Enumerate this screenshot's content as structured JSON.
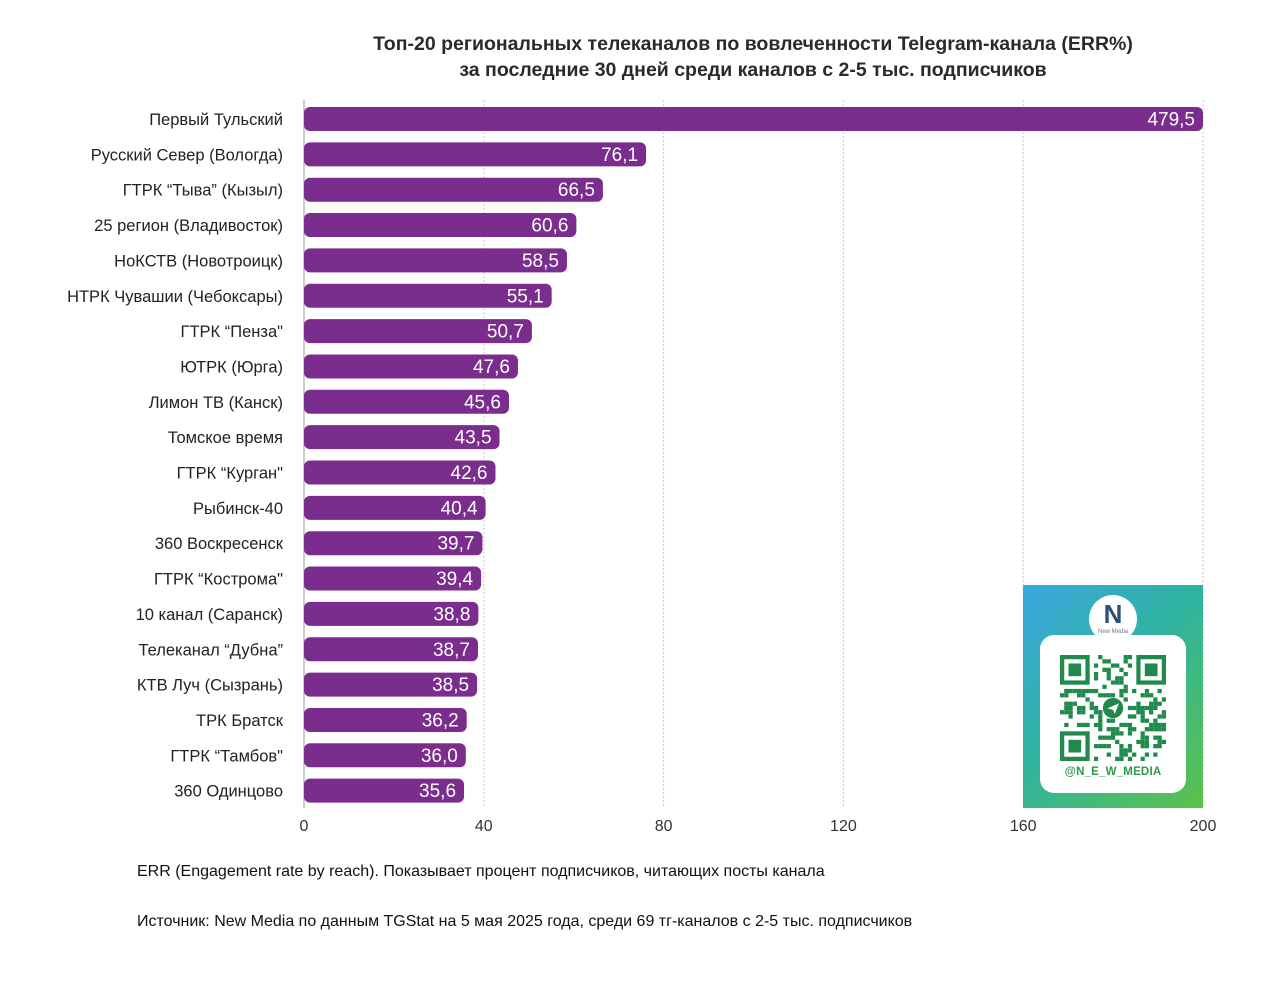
{
  "chart_data": {
    "type": "bar",
    "orientation": "horizontal",
    "title": "Топ-20 региональных телеканалов по вовлеченности Telegram-канала (ERR%)",
    "subtitle": "за последние 30 дней среди каналов с 2-5 тыс. подписчиков",
    "categories": [
      "Первый Тульский",
      "Русский Север (Вологда)",
      "ГТРК “Тыва” (Кызыл)",
      "25 регион (Владивосток)",
      "НоКСТВ (Новотроицк)",
      "НТРК Чувашии (Чебоксары)",
      "ГТРК “Пенза\"",
      "ЮТРК (Юрга)",
      "Лимон ТВ (Канск)",
      "Томское время",
      "ГТРК “Курган\"",
      "Рыбинск-40",
      "360 Воскресенск",
      "ГТРК “Кострома\"",
      "10 канал (Саранск)",
      "Телеканал “Дубна”",
      "КТВ Луч (Сызрань)",
      "ТРК Братск",
      "ГТРК “Тамбов\"",
      "360 Одинцово"
    ],
    "values": [
      479.5,
      76.1,
      66.5,
      60.6,
      58.5,
      55.1,
      50.7,
      47.6,
      45.6,
      43.5,
      42.6,
      40.4,
      39.7,
      39.4,
      38.8,
      38.7,
      38.5,
      36.2,
      36.0,
      35.6
    ],
    "value_labels": [
      "479,5",
      "76,1",
      "66,5",
      "60,6",
      "58,5",
      "55,1",
      "50,7",
      "47,6",
      "45,6",
      "43,5",
      "42,6",
      "40,4",
      "39,7",
      "39,4",
      "38,8",
      "38,7",
      "38,5",
      "36,2",
      "36,0",
      "35,6"
    ],
    "xlim": [
      0,
      200
    ],
    "xticks": [
      0,
      40,
      80,
      120,
      160,
      200
    ],
    "xlabel": "",
    "ylabel": "",
    "grid": true,
    "bar_color": "#7b2d8e",
    "label_color": "#ffffff"
  },
  "notes": {
    "definition": "ERR (Engagement rate by reach). Показывает процент подписчиков, читающих посты канала",
    "source": "Источник: New Media по данным TGStat на 5 мая 2025 года, среди 69 тг-каналов с 2-5 тыс. подписчиков"
  },
  "promo": {
    "logo_letter": "N",
    "logo_text": "New Media",
    "handle": "@N_E_W_MEDIA",
    "qr_icon": "telegram-icon"
  }
}
